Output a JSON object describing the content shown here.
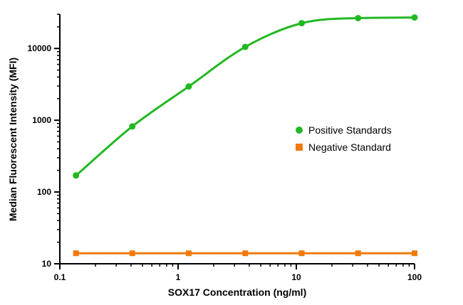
{
  "chart_data": {
    "type": "scatter",
    "title": "",
    "xlabel": "SOX17 Concentration (ng/ml)",
    "ylabel": "Median Fluorescent Intensity (MFI)",
    "x_scale": "log",
    "y_scale": "log",
    "xlim": [
      0.1,
      100
    ],
    "ylim": [
      10,
      30000
    ],
    "x_ticks": [
      "0.1",
      "1",
      "10",
      "100"
    ],
    "y_ticks": [
      "10",
      "100",
      "1000",
      "10000"
    ],
    "grid": false,
    "legend_position": "right",
    "series": [
      {
        "name": "Positive Standards",
        "color": "#22b822",
        "marker": "circle",
        "fit_curve": true,
        "x": [
          0.137,
          0.41,
          1.23,
          3.7,
          11.1,
          33.3,
          100
        ],
        "y": [
          170,
          820,
          2950,
          10500,
          22500,
          26500,
          27000
        ]
      },
      {
        "name": "Negative Standard",
        "color": "#f07a0c",
        "marker": "square",
        "fit_curve": false,
        "x": [
          0.137,
          0.41,
          1.23,
          3.7,
          11.1,
          33.3,
          100
        ],
        "y": [
          14,
          14,
          14,
          14,
          14,
          14,
          14
        ]
      }
    ]
  }
}
